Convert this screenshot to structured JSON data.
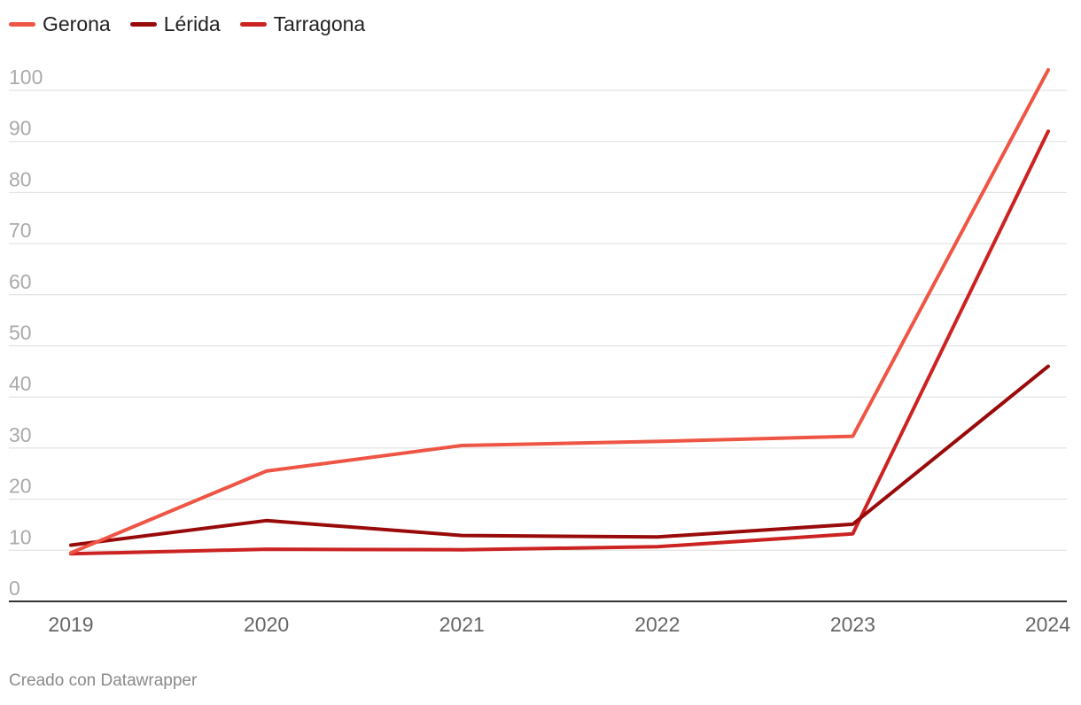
{
  "chart_data": {
    "type": "line",
    "x": [
      "2019",
      "2020",
      "2021",
      "2022",
      "2023",
      "2024"
    ],
    "series": [
      {
        "name": "Gerona",
        "color": "#ee5544",
        "values": [
          9.5,
          25.5,
          30.5,
          31.3,
          32.3,
          104
        ]
      },
      {
        "name": "Lérida",
        "color": "#990a0a",
        "values": [
          11,
          15.8,
          12.9,
          12.6,
          15.1,
          46
        ]
      },
      {
        "name": "Tarragona",
        "color": "#cc2222",
        "values": [
          9.3,
          10.2,
          10.1,
          10.7,
          13.2,
          92
        ]
      }
    ],
    "y_ticks": [
      "0",
      "10",
      "20",
      "30",
      "40",
      "50",
      "60",
      "70",
      "80",
      "90",
      "100"
    ],
    "ylim": [
      0,
      100
    ],
    "grid": true,
    "legend_position": "top-left"
  },
  "footer": {
    "credit": "Creado con Datawrapper"
  }
}
